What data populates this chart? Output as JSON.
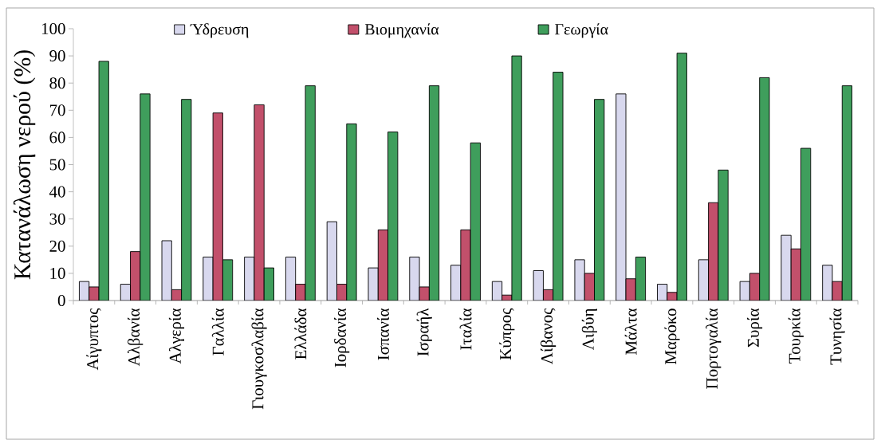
{
  "chart_data": {
    "type": "bar",
    "ylabel": "Κατανάλωση νερού (%)",
    "categories": [
      "Αίγυπτος",
      "Αλβανία",
      "Αλγερία",
      "Γαλλία",
      "Γιουγκοσλαβία",
      "Ελλάδα",
      "Ιορδανία",
      "Ισπανία",
      "Ισραήλ",
      "Ιταλία",
      "Κύπρος",
      "Λίβανος",
      "Λιβύη",
      "Μάλτα",
      "Μαρόκο",
      "Πορτογαλία",
      "Συρία",
      "Τουρκία",
      "Τυνησία"
    ],
    "series": [
      {
        "name": "Ύδρευση",
        "color": "#d8d8ee",
        "values": [
          7,
          6,
          22,
          16,
          16,
          16,
          29,
          12,
          16,
          13,
          7,
          11,
          15,
          76,
          6,
          15,
          7,
          24,
          13
        ]
      },
      {
        "name": "Βιομηχανία",
        "color": "#c2506b",
        "values": [
          5,
          18,
          4,
          69,
          72,
          6,
          6,
          26,
          5,
          26,
          2,
          4,
          10,
          8,
          3,
          36,
          10,
          19,
          7
        ]
      },
      {
        "name": "Γεωργία",
        "color": "#3f9e5c",
        "values": [
          88,
          76,
          74,
          15,
          12,
          79,
          65,
          62,
          79,
          58,
          90,
          84,
          74,
          16,
          91,
          48,
          82,
          56,
          79
        ]
      }
    ],
    "ylim": [
      0,
      100
    ],
    "yticks": [
      0,
      10,
      20,
      30,
      40,
      50,
      60,
      70,
      80,
      90,
      100
    ],
    "legend": "top"
  }
}
